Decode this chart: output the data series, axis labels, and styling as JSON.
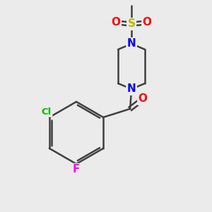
{
  "background_color": "#ebebeb",
  "bond_color": "#404040",
  "bond_width": 1.8,
  "atom_colors": {
    "N": "#0000ff",
    "O": "#ff0000",
    "S": "#b8b800",
    "Cl": "#00bb00",
    "F": "#ff00ff",
    "C": "#404040"
  },
  "figsize": [
    3.0,
    3.0
  ],
  "dpi": 100,
  "font_size": 11,
  "font_size_small": 9.5
}
